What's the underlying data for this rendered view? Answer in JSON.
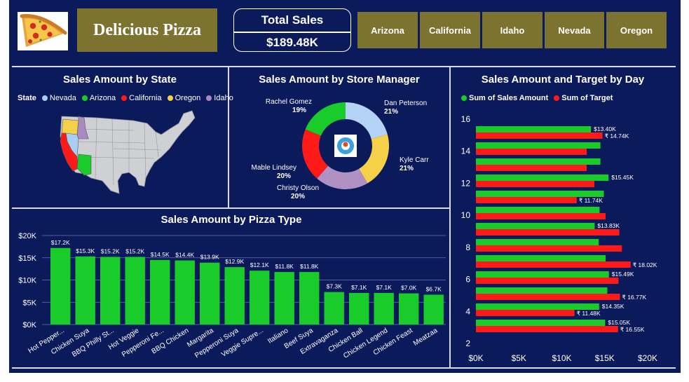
{
  "header": {
    "brand": "Delicious Pizza",
    "kpi": {
      "label": "Total Sales",
      "value": "$189.48K"
    },
    "slicers": [
      "Arizona",
      "California",
      "Idaho",
      "Nevada",
      "Oregon"
    ]
  },
  "colors": {
    "background": "#0b1a5a",
    "brand": "#7d7330",
    "green": "#19cc2a",
    "red": "#ff1a1a"
  },
  "chart_data": [
    {
      "type": "map",
      "title": "Sales Amount by State",
      "legend_title": "State",
      "legend": [
        {
          "name": "Nevada",
          "color": "#a9cdf3"
        },
        {
          "name": "Arizona",
          "color": "#19cc2a"
        },
        {
          "name": "California",
          "color": "#ff1a1a"
        },
        {
          "name": "Oregon",
          "color": "#f5d14a"
        },
        {
          "name": "Idaho",
          "color": "#a98bc2"
        }
      ]
    },
    {
      "type": "pie",
      "title": "Sales Amount by Store Manager",
      "slices": [
        {
          "name": "Dan Peterson",
          "pct": "21%",
          "value": 21,
          "color": "#b5d3f5"
        },
        {
          "name": "Kyle Carr",
          "pct": "21%",
          "value": 21,
          "color": "#f5d14a"
        },
        {
          "name": "Christy Olson",
          "pct": "20%",
          "value": 20,
          "color": "#b091c4"
        },
        {
          "name": "Mable Lindsey",
          "pct": "20%",
          "value": 20,
          "color": "#ff1a1a"
        },
        {
          "name": "Rachel Gomez",
          "pct": "19%",
          "value": 19,
          "color": "#19cc2a"
        }
      ]
    },
    {
      "type": "bar",
      "title": "Sales Amount by Pizza Type",
      "categories": [
        "Hot Pepper...",
        "Chicken Suya",
        "BBQ Philly St...",
        "Hot Veggie",
        "Pepperoni Fe...",
        "BBQ Chicken",
        "Margarita",
        "Pepperoni Suya",
        "Veggie Supre...",
        "Italiano",
        "Beef Suya",
        "Extravaganza",
        "Chicken Ball",
        "Chicken Legend",
        "Chicken Feast",
        "Meatzaa"
      ],
      "values": [
        17.2,
        15.3,
        15.2,
        15.2,
        14.5,
        14.4,
        13.9,
        12.9,
        12.1,
        11.8,
        11.8,
        7.3,
        7.1,
        7.1,
        7.0,
        6.7
      ],
      "value_labels": [
        "$17.2K",
        "$15.3K",
        "$15.2K",
        "$15.2K",
        "$14.5K",
        "$14.4K",
        "$13.9K",
        "$12.9K",
        "$12.1K",
        "$11.8K",
        "$11.8K",
        "$7.3K",
        "$7.1K",
        "$7.1K",
        "$7.0K",
        "$6.7K"
      ],
      "yticks": [
        "$0K",
        "$5K",
        "$10K",
        "$15K",
        "$20K"
      ],
      "ylim": [
        0,
        20
      ],
      "color": "#19cc2a"
    },
    {
      "type": "bar",
      "orientation": "horizontal",
      "title": "Sales Amount and Target by Day",
      "series": [
        {
          "name": "Sum of Sales Amount",
          "color": "#19cc2a"
        },
        {
          "name": "Sum of Target",
          "color": "#ff1a1a"
        }
      ],
      "days": [
        15,
        14,
        13,
        12,
        11,
        10,
        9,
        8,
        7,
        6,
        5,
        4,
        3
      ],
      "sales": [
        13.4,
        14.5,
        14.5,
        15.45,
        14.9,
        14.4,
        13.83,
        14.3,
        15.1,
        15.49,
        15.3,
        14.35,
        15.05
      ],
      "target": [
        14.74,
        12.9,
        12.9,
        13.8,
        11.74,
        15.1,
        16.7,
        17.0,
        18.02,
        16.6,
        16.77,
        11.48,
        16.55
      ],
      "sales_labels": [
        "$13.40K",
        "",
        "",
        "$15.45K",
        "",
        "",
        "$13.83K",
        "",
        "",
        "$15.49K",
        "",
        "$14.35K",
        "$15.05K"
      ],
      "target_labels": [
        "₹ 14.74K",
        "",
        "",
        "",
        "₹ 11.74K",
        "",
        "",
        "",
        "₹ 18.02K",
        "",
        "₹ 16.77K",
        "₹ 11.48K",
        "₹ 16.55K"
      ],
      "yticks": [
        "16",
        "14",
        "12",
        "10",
        "8",
        "6",
        "4",
        "2"
      ],
      "xticks": [
        "$0K",
        "$5K",
        "$10K",
        "$15K",
        "$20K"
      ],
      "xlim": [
        0,
        20
      ]
    }
  ]
}
